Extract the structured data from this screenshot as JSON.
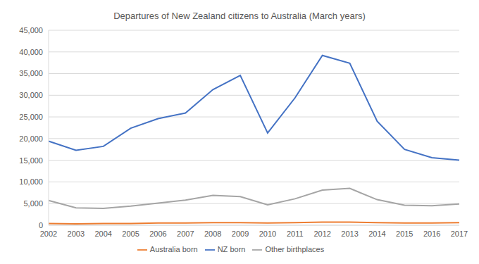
{
  "chart_data": {
    "type": "line",
    "title": "Departures of New Zealand citizens to Australia (March years)",
    "categories": [
      "2002",
      "2003",
      "2004",
      "2005",
      "2006",
      "2007",
      "2008",
      "2009",
      "2010",
      "2011",
      "2012",
      "2013",
      "2014",
      "2015",
      "2016",
      "2017"
    ],
    "series": [
      {
        "name": "NZ born",
        "color": "#4472c4",
        "values": [
          19400,
          17300,
          18200,
          22400,
          24600,
          25900,
          31300,
          34600,
          21300,
          29400,
          39200,
          37400,
          24000,
          17500,
          15600,
          15000
        ]
      },
      {
        "name": "Australia born",
        "color": "#ed7d31",
        "values": [
          400,
          300,
          400,
          400,
          500,
          500,
          600,
          600,
          500,
          600,
          700,
          700,
          600,
          500,
          500,
          600
        ]
      },
      {
        "name": "Other birthplaces",
        "color": "#a5a5a5",
        "values": [
          5700,
          4000,
          3900,
          4400,
          5100,
          5800,
          6900,
          6600,
          4700,
          6100,
          8100,
          8500,
          5900,
          4600,
          4500,
          4900
        ]
      }
    ],
    "ylim": [
      0,
      45000
    ],
    "yticks": [
      0,
      {
        "value": 5000,
        "label": "5,000"
      },
      {
        "value": 10000,
        "label": "10,000"
      },
      {
        "value": 15000,
        "label": "15,000"
      },
      {
        "value": 20000,
        "label": "20,000"
      },
      {
        "value": 25000,
        "label": "25,000"
      },
      {
        "value": 30000,
        "label": "30,000"
      },
      {
        "value": 35000,
        "label": "35,000"
      },
      {
        "value": 40000,
        "label": "40,000"
      },
      {
        "value": 45000,
        "label": "45,000"
      }
    ],
    "grid": true,
    "legend": "bottom",
    "marker": "none"
  }
}
